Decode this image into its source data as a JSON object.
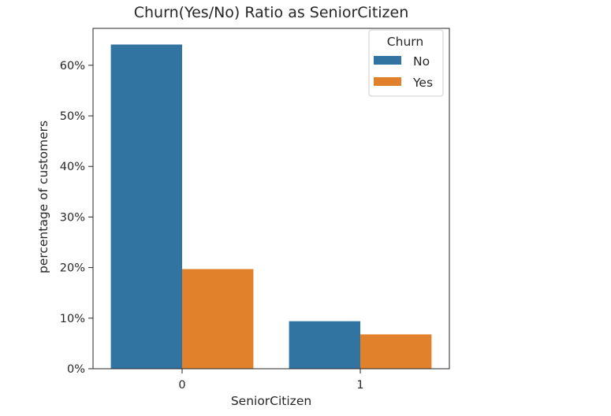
{
  "chart_data": {
    "type": "bar",
    "title": "Churn(Yes/No) Ratio as SeniorCitizen",
    "xlabel": "SeniorCitizen",
    "ylabel": "percentage of customers",
    "categories": [
      "0",
      "1"
    ],
    "series": [
      {
        "name": "No",
        "values": [
          64.1,
          9.4
        ],
        "color": "#3274a1"
      },
      {
        "name": "Yes",
        "values": [
          19.7,
          6.8
        ],
        "color": "#e1812c"
      }
    ],
    "ylim": [
      0,
      67.3
    ],
    "yticks": [
      0,
      10,
      20,
      30,
      40,
      50,
      60
    ],
    "ytick_labels": [
      "0%",
      "10%",
      "20%",
      "30%",
      "40%",
      "50%",
      "60%"
    ],
    "legend": {
      "title": "Churn",
      "placement": "top-right"
    },
    "grid": false
  }
}
